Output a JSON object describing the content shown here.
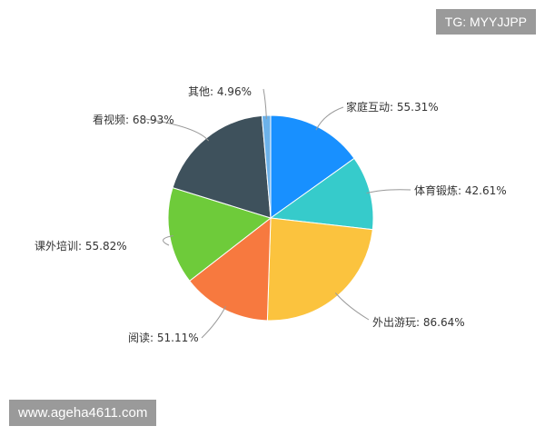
{
  "chart_data": {
    "type": "pie",
    "title": "",
    "start": "top",
    "direction": "clockwise",
    "slices": [
      {
        "label": "家庭互动",
        "value": 55.31,
        "text": "家庭互动: 55.31%",
        "color": "#1890ff"
      },
      {
        "label": "体育锻炼",
        "value": 42.61,
        "text": "体育锻炼: 42.61%",
        "color": "#36cbcb"
      },
      {
        "label": "外出游玩",
        "value": 86.64,
        "text": "外出游玩: 86.64%",
        "color": "#fbc33e"
      },
      {
        "label": "阅读",
        "value": 51.11,
        "text": "阅读: 51.11%",
        "color": "#f7793f"
      },
      {
        "label": "课外培训",
        "value": 55.82,
        "text": "课外培训: 55.82%",
        "color": "#6ecb3a"
      },
      {
        "label": "看视频",
        "value": 68.93,
        "text": "看视频: 68.93%",
        "color": "#3e515c"
      },
      {
        "label": "其他",
        "value": 4.96,
        "text": "其他: 4.96%",
        "color": "#6cb2ea"
      }
    ]
  },
  "watermarks": {
    "tg": "TG: MYYJJPP",
    "url": "www.ageha4611.com"
  }
}
